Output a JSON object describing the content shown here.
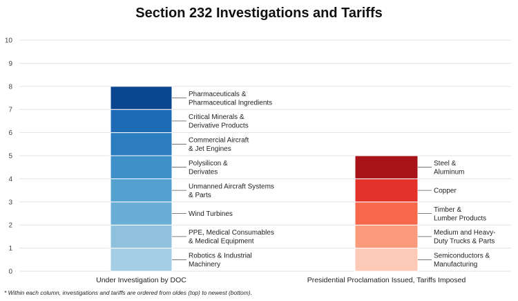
{
  "chart_data": {
    "type": "bar",
    "stacked": true,
    "title": "Section 232 Investigations and Tariffs",
    "xlabel": "",
    "ylabel": "",
    "ylim": [
      0,
      10
    ],
    "yticks": [
      0,
      1,
      2,
      3,
      4,
      5,
      6,
      7,
      8,
      9,
      10
    ],
    "grid": true,
    "legend": "none (labels beside segments)",
    "categories": [
      "Under Investigation by DOC",
      "Presidential Proclamation Issued, Tariffs Imposed"
    ],
    "columns": [
      {
        "category": "Under Investigation by DOC",
        "total": 8,
        "segments_bottom_to_top": [
          {
            "label": [
              "Robotics & Industrial",
              "Machinery"
            ],
            "value": 1,
            "color": "#a6cde6"
          },
          {
            "label": [
              "PPE, Medical Consumables",
              "& Medical Equipment"
            ],
            "value": 1,
            "color": "#8fc0de"
          },
          {
            "label": [
              "Wind Turbines"
            ],
            "value": 1,
            "color": "#6aaed6"
          },
          {
            "label": [
              "Unmanned Aircraft Systems",
              "& Parts"
            ],
            "value": 1,
            "color": "#54a0cf"
          },
          {
            "label": [
              "Polysilicon &",
              "Derivates"
            ],
            "value": 1,
            "color": "#3f8fc8"
          },
          {
            "label": [
              "Commercial Aircraft",
              "& Jet Engines"
            ],
            "value": 1,
            "color": "#2c7dc0"
          },
          {
            "label": [
              "Critical Minerals &",
              "Derivative Products"
            ],
            "value": 1,
            "color": "#1d6bb4"
          },
          {
            "label": [
              "Pharmaceuticals &",
              "Pharmaceutical Ingredients"
            ],
            "value": 1,
            "color": "#0b4690"
          }
        ]
      },
      {
        "category": "Presidential Proclamation Issued, Tariffs Imposed",
        "total": 5,
        "segments_bottom_to_top": [
          {
            "label": [
              "Semiconductors &",
              "Manufacturing"
            ],
            "value": 1,
            "color": "#fdcab8"
          },
          {
            "label": [
              "Medium and Heavy-",
              "Duty Trucks & Parts"
            ],
            "value": 1,
            "color": "#fc9a7c"
          },
          {
            "label": [
              "Timber &",
              "Lumber Products"
            ],
            "value": 1,
            "color": "#f9684a"
          },
          {
            "label": [
              "Copper"
            ],
            "value": 1,
            "color": "#e2322a"
          },
          {
            "label": [
              "Steel &",
              "Aluminum"
            ],
            "value": 1,
            "color": "#a81219"
          }
        ]
      }
    ],
    "footnote": "* Within each column, investigations and tariffs are ordered from oldes (top) to newest (bottom)."
  }
}
